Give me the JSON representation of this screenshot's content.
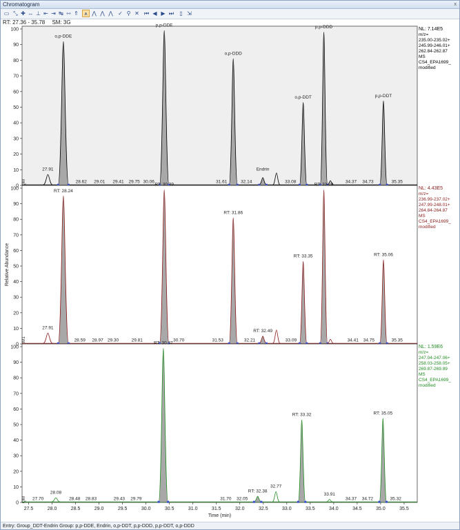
{
  "window": {
    "title": "Chromatogram",
    "close_glyph": "x"
  },
  "toolbar": {
    "buttons": [
      {
        "name": "display-options-icon",
        "glyph": "▭",
        "active": false
      },
      {
        "name": "zoom-xy-icon",
        "glyph": "⤡",
        "active": false
      },
      {
        "name": "zoom-in-icon",
        "glyph": "✚",
        "active": false
      },
      {
        "name": "zoom-x-icon",
        "glyph": "↔",
        "active": false
      },
      {
        "name": "peak-marker-icon",
        "glyph": "⊥",
        "active": false
      },
      {
        "name": "expand-x-icon",
        "glyph": "⇤",
        "active": false
      },
      {
        "name": "shift-left-icon",
        "glyph": "⇥",
        "active": false
      },
      {
        "name": "scroll-x-icon",
        "glyph": "↹",
        "active": false
      },
      {
        "name": "zoom-range-icon",
        "glyph": "⇿",
        "active": false
      },
      {
        "name": "normalize-icon",
        "glyph": "⇑",
        "active": false
      },
      {
        "name": "label-peaks-icon",
        "glyph": "⩚",
        "active": true
      },
      {
        "name": "show-peaks-icon",
        "glyph": "⋀",
        "active": false
      },
      {
        "name": "peak-area-icon",
        "glyph": "⋀",
        "active": false
      },
      {
        "name": "peak-color-icon",
        "glyph": "⋀",
        "active": false
      },
      {
        "name": "accept-icon",
        "glyph": "✓",
        "active": false
      },
      {
        "name": "pin-icon",
        "glyph": "⚲",
        "active": false
      },
      {
        "name": "delete-icon",
        "glyph": "✕",
        "active": false
      },
      {
        "name": "first-icon",
        "glyph": "⏮",
        "active": false
      },
      {
        "name": "previous-icon",
        "glyph": "◀",
        "active": false
      },
      {
        "name": "next-icon",
        "glyph": "▶",
        "active": false
      },
      {
        "name": "last-icon",
        "glyph": "⏭",
        "active": false
      },
      {
        "name": "page-icon",
        "glyph": "▯",
        "active": false
      },
      {
        "name": "export-icon",
        "glyph": "⇲",
        "active": false
      }
    ]
  },
  "status": {
    "rt_range": "RT: 27.36 - 35.78",
    "sm": "SM: 3G"
  },
  "footer": {
    "entry": "Entry: Group_DDT-Endrin Group: p,p-DDE, Endrin, o,p-DDT, p,p-DDD, p,p-DDT, o,p-DDD"
  },
  "colors": {
    "panel1": "#000000",
    "panel2": "#8b1a1a",
    "panel3": "#1f8c1f",
    "peak_fill": "#a8a8a8",
    "baseline_mark": "#3a4fd8"
  },
  "chart_data": {
    "type": "line",
    "xlabel": "Time (min)",
    "ylabel": "Relative Abundance",
    "xlim": [
      27.36,
      35.78
    ],
    "ylim": [
      0,
      100
    ],
    "xticks": [
      27.5,
      28.0,
      28.5,
      29.0,
      29.5,
      30.0,
      30.5,
      31.0,
      31.5,
      32.0,
      32.5,
      33.0,
      33.5,
      34.0,
      34.5,
      35.0,
      35.5
    ],
    "yticks": [
      0,
      10,
      20,
      30,
      40,
      50,
      60,
      70,
      80,
      90,
      100
    ],
    "panels": [
      {
        "nl": "NL: 7.14E5",
        "info": [
          "m/z=",
          "235.00-235.02+",
          "245.99-246.01+",
          "262.84-262.87",
          "MS",
          "CS4_EPA1699_",
          "modified"
        ],
        "corner_label": "QM",
        "color_key": "panel1",
        "shaded": true,
        "peaks": [
          {
            "rt": 27.91,
            "h": 7,
            "w": 0.045,
            "fill": false
          },
          {
            "rt": 28.24,
            "h": 92,
            "w": 0.05,
            "fill": true
          },
          {
            "rt": 30.39,
            "h": 99,
            "w": 0.045,
            "fill": true
          },
          {
            "rt": 31.86,
            "h": 81,
            "w": 0.04,
            "fill": true
          },
          {
            "rt": 32.49,
            "h": 5,
            "w": 0.035,
            "fill": true
          },
          {
            "rt": 32.78,
            "h": 8,
            "w": 0.035,
            "fill": false
          },
          {
            "rt": 33.35,
            "h": 53,
            "w": 0.035,
            "fill": true
          },
          {
            "rt": 33.79,
            "h": 98,
            "w": 0.035,
            "fill": true
          },
          {
            "rt": 33.93,
            "h": 3,
            "w": 0.03,
            "fill": false
          },
          {
            "rt": 35.06,
            "h": 54,
            "w": 0.035,
            "fill": true
          }
        ],
        "labels": [
          {
            "rt": 27.91,
            "y": 9,
            "text": "27.91"
          },
          {
            "rt": 28.24,
            "y": 94,
            "text": "o,p-DDE"
          },
          {
            "rt": 30.39,
            "y": 101,
            "text": "p,p-DDE"
          },
          {
            "rt": 31.86,
            "y": 83,
            "text": "o,p-DDD"
          },
          {
            "rt": 32.49,
            "y": 9,
            "text": "Endrin"
          },
          {
            "rt": 33.35,
            "y": 55,
            "text": "o,p-DDT"
          },
          {
            "rt": 33.79,
            "y": 100,
            "text": "p,p-DDD"
          },
          {
            "rt": 35.06,
            "y": 56,
            "text": "p,p-DDT"
          },
          {
            "rt": 28.62,
            "y": 1,
            "text": "28.62"
          },
          {
            "rt": 29.01,
            "y": 1,
            "text": "29.01"
          },
          {
            "rt": 29.41,
            "y": 1,
            "text": "29.41"
          },
          {
            "rt": 29.75,
            "y": 1,
            "text": "29.75"
          },
          {
            "rt": 30.06,
            "y": 1,
            "text": "30.06"
          },
          {
            "rt": 31.61,
            "y": 1,
            "text": "31.61"
          },
          {
            "rt": 32.14,
            "y": 1,
            "text": "32.14"
          },
          {
            "rt": 33.08,
            "y": 1,
            "text": "33.08"
          },
          {
            "rt": 34.37,
            "y": 1,
            "text": "34.37"
          },
          {
            "rt": 34.73,
            "y": 1,
            "text": "34.73"
          },
          {
            "rt": 35.35,
            "y": 1,
            "text": "35.35"
          }
        ]
      },
      {
        "nl": "NL: 4.43E5",
        "info": [
          "m/z=",
          "236.99-237.02+",
          "247.99-248.01+",
          "264.84-264.87",
          "MS",
          "CS4_EPA1699_",
          "modified"
        ],
        "corner_label": "RM1",
        "color_key": "panel2",
        "shaded": false,
        "peaks": [
          {
            "rt": 27.91,
            "h": 7,
            "w": 0.045,
            "fill": false
          },
          {
            "rt": 28.24,
            "h": 95,
            "w": 0.05,
            "fill": true
          },
          {
            "rt": 30.39,
            "h": 99,
            "w": 0.045,
            "fill": true
          },
          {
            "rt": 31.86,
            "h": 81,
            "w": 0.04,
            "fill": true
          },
          {
            "rt": 32.49,
            "h": 5,
            "w": 0.035,
            "fill": true
          },
          {
            "rt": 32.78,
            "h": 9,
            "w": 0.035,
            "fill": false
          },
          {
            "rt": 33.35,
            "h": 53,
            "w": 0.035,
            "fill": true
          },
          {
            "rt": 33.79,
            "h": 99,
            "w": 0.035,
            "fill": true
          },
          {
            "rt": 33.93,
            "h": 3,
            "w": 0.03,
            "fill": false
          },
          {
            "rt": 35.06,
            "h": 54,
            "w": 0.035,
            "fill": true
          }
        ],
        "labels": [
          {
            "rt": 27.91,
            "y": 9,
            "text": "27.91"
          },
          {
            "rt": 28.24,
            "y": 97,
            "text": "RT: 28.24"
          },
          {
            "rt": 30.39,
            "y": 101,
            "text": "RT: 30.39"
          },
          {
            "rt": 31.86,
            "y": 83,
            "text": "RT: 31.86"
          },
          {
            "rt": 32.49,
            "y": 7,
            "text": "RT: 32.49"
          },
          {
            "rt": 33.35,
            "y": 55,
            "text": "RT: 33.35"
          },
          {
            "rt": 33.79,
            "y": 101,
            "text": "RT: 33.79"
          },
          {
            "rt": 35.06,
            "y": 56,
            "text": "RT: 35.06"
          },
          {
            "rt": 28.59,
            "y": 1,
            "text": "28.59"
          },
          {
            "rt": 28.97,
            "y": 1,
            "text": "28.97"
          },
          {
            "rt": 29.3,
            "y": 1,
            "text": "29.30"
          },
          {
            "rt": 29.81,
            "y": 1,
            "text": "29.81"
          },
          {
            "rt": 30.7,
            "y": 1,
            "text": "30.70"
          },
          {
            "rt": 31.53,
            "y": 1,
            "text": "31.53"
          },
          {
            "rt": 32.21,
            "y": 1,
            "text": "32.21"
          },
          {
            "rt": 33.09,
            "y": 1,
            "text": "33.09"
          },
          {
            "rt": 34.41,
            "y": 1,
            "text": "34.41"
          },
          {
            "rt": 34.75,
            "y": 1,
            "text": "34.75"
          },
          {
            "rt": 35.35,
            "y": 1,
            "text": "35.35"
          }
        ]
      },
      {
        "nl": "NL: 1.59E6",
        "info": [
          "m/z=",
          "247.04-247.06+",
          "258.03-258.05+",
          "269.87-269.89",
          "MS",
          "CS4_EPA1699_",
          "modified"
        ],
        "corner_label": "QM",
        "color_key": "panel3",
        "shaded": false,
        "peaks": [
          {
            "rt": 28.08,
            "h": 3,
            "w": 0.04,
            "fill": false
          },
          {
            "rt": 30.37,
            "h": 99,
            "w": 0.045,
            "fill": true
          },
          {
            "rt": 32.38,
            "h": 4,
            "w": 0.035,
            "fill": true
          },
          {
            "rt": 32.77,
            "h": 7,
            "w": 0.035,
            "fill": false
          },
          {
            "rt": 33.32,
            "h": 53,
            "w": 0.035,
            "fill": true
          },
          {
            "rt": 33.91,
            "h": 2,
            "w": 0.03,
            "fill": false
          },
          {
            "rt": 35.05,
            "h": 54,
            "w": 0.035,
            "fill": true
          }
        ],
        "labels": [
          {
            "rt": 28.08,
            "y": 5,
            "text": "28.08"
          },
          {
            "rt": 30.37,
            "y": 101,
            "text": "RT: 30.37"
          },
          {
            "rt": 32.38,
            "y": 6,
            "text": "RT: 32.38"
          },
          {
            "rt": 32.77,
            "y": 9,
            "text": "32.77"
          },
          {
            "rt": 33.32,
            "y": 55,
            "text": "RT: 33.32"
          },
          {
            "rt": 33.91,
            "y": 4,
            "text": "33.91"
          },
          {
            "rt": 35.05,
            "y": 56,
            "text": "RT: 35.05"
          },
          {
            "rt": 27.7,
            "y": 1,
            "text": "27.70"
          },
          {
            "rt": 28.48,
            "y": 1,
            "text": "28.48"
          },
          {
            "rt": 28.83,
            "y": 1,
            "text": "28.83"
          },
          {
            "rt": 29.43,
            "y": 1,
            "text": "29.43"
          },
          {
            "rt": 29.79,
            "y": 1,
            "text": "29.79"
          },
          {
            "rt": 31.7,
            "y": 1,
            "text": "31.70"
          },
          {
            "rt": 32.05,
            "y": 1,
            "text": "32.05"
          },
          {
            "rt": 34.37,
            "y": 1,
            "text": "34.37"
          },
          {
            "rt": 34.72,
            "y": 1,
            "text": "34.72"
          },
          {
            "rt": 35.32,
            "y": 1,
            "text": "35.32"
          }
        ]
      }
    ]
  }
}
